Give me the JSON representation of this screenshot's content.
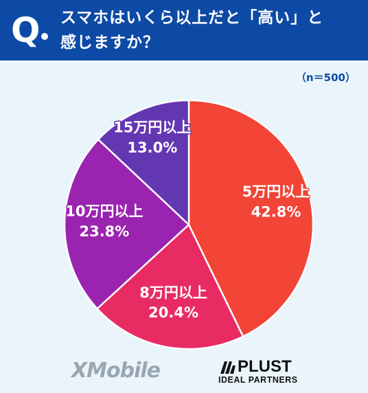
{
  "header": {
    "q_mark": "Q",
    "title_line1": "スマホはいくら以上だと「高い」と",
    "title_line2": "感じますか？",
    "background": "#0d4aa6"
  },
  "sample_size": "（n＝500）",
  "chart_data": {
    "type": "pie",
    "title": "スマホはいくら以上だと「高い」と感じますか？",
    "slices": [
      {
        "label": "5万円以上",
        "value": 42.8,
        "value_label": "42.8%",
        "color": "#f24437"
      },
      {
        "label": "8万円以上",
        "value": 20.4,
        "value_label": "20.4%",
        "color": "#e82c63"
      },
      {
        "label": "10万円以上",
        "value": 23.8,
        "value_label": "23.8%",
        "color": "#9a24b0"
      },
      {
        "label": "15万円以上",
        "value": 13.0,
        "value_label": "13.0%",
        "color": "#6437b2"
      }
    ],
    "start": "12 o'clock",
    "direction": "clockwise",
    "legend": "none"
  },
  "logos": {
    "xmobile": "XMobile",
    "plust_name": "PLUST",
    "plust_sub": "IDEAL PARTNERS"
  }
}
